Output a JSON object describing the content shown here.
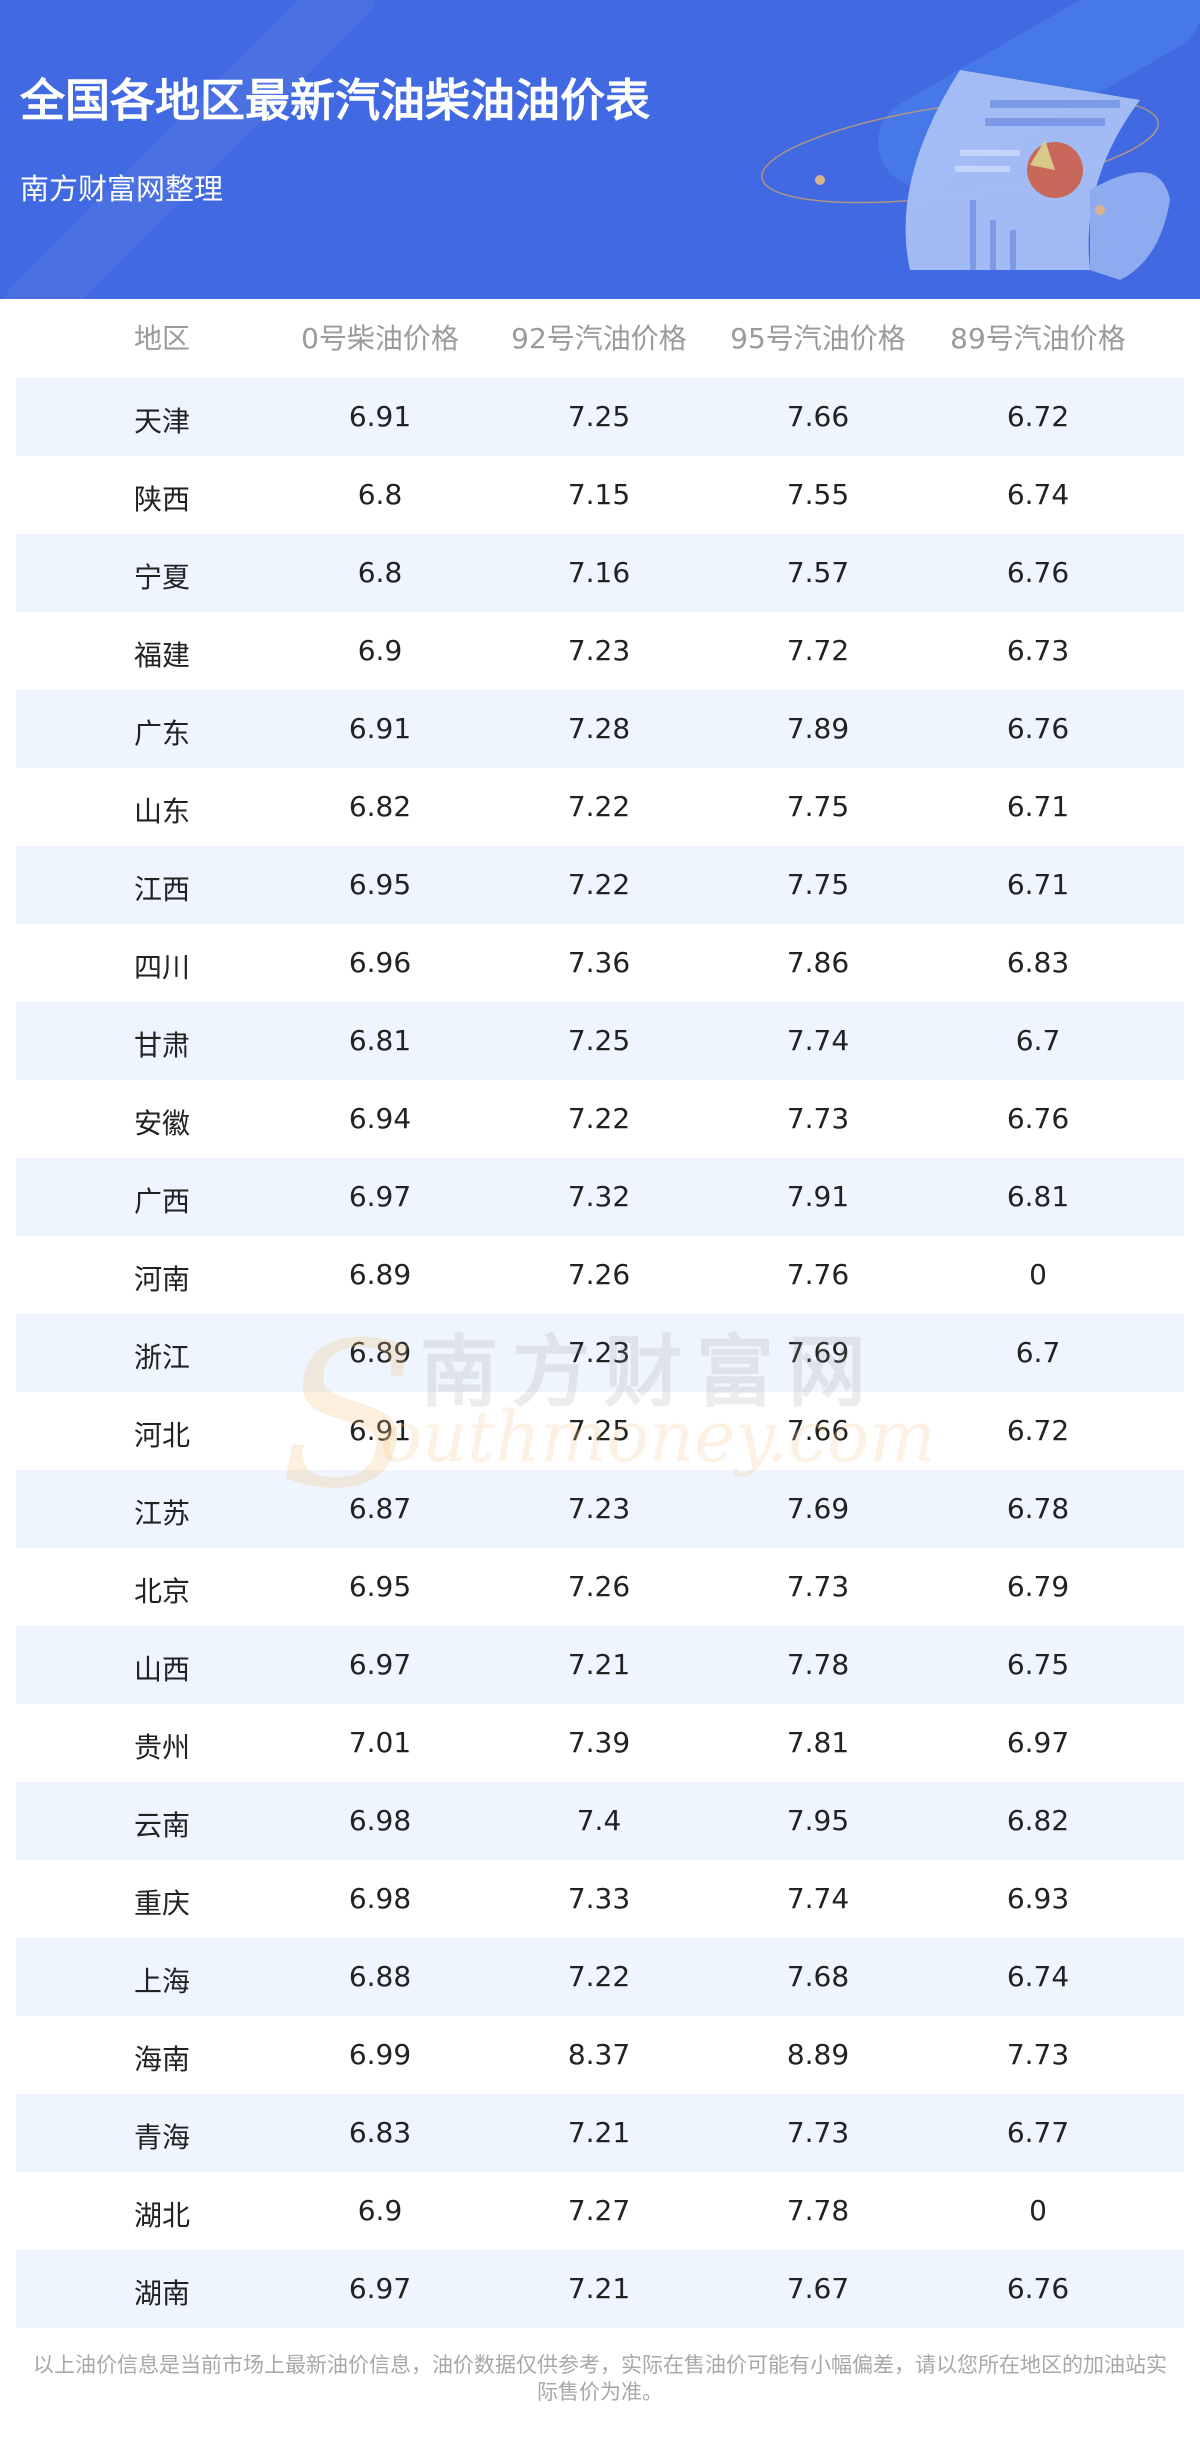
{
  "header": {
    "title": "全国各地区最新汽油柴油油价表",
    "subtitle": "南方财富网整理",
    "background_color": "#4169e1"
  },
  "table": {
    "columns": [
      "地区",
      "0号柴油价格",
      "92号汽油价格",
      "95号汽油价格",
      "89号汽油价格"
    ],
    "rows": [
      [
        "天津",
        "6.91",
        "7.25",
        "7.66",
        "6.72"
      ],
      [
        "陕西",
        "6.8",
        "7.15",
        "7.55",
        "6.74"
      ],
      [
        "宁夏",
        "6.8",
        "7.16",
        "7.57",
        "6.76"
      ],
      [
        "福建",
        "6.9",
        "7.23",
        "7.72",
        "6.73"
      ],
      [
        "广东",
        "6.91",
        "7.28",
        "7.89",
        "6.76"
      ],
      [
        "山东",
        "6.82",
        "7.22",
        "7.75",
        "6.71"
      ],
      [
        "江西",
        "6.95",
        "7.22",
        "7.75",
        "6.71"
      ],
      [
        "四川",
        "6.96",
        "7.36",
        "7.86",
        "6.83"
      ],
      [
        "甘肃",
        "6.81",
        "7.25",
        "7.74",
        "6.7"
      ],
      [
        "安徽",
        "6.94",
        "7.22",
        "7.73",
        "6.76"
      ],
      [
        "广西",
        "6.97",
        "7.32",
        "7.91",
        "6.81"
      ],
      [
        "河南",
        "6.89",
        "7.26",
        "7.76",
        "0"
      ],
      [
        "浙江",
        "6.89",
        "7.23",
        "7.69",
        "6.7"
      ],
      [
        "河北",
        "6.91",
        "7.25",
        "7.66",
        "6.72"
      ],
      [
        "江苏",
        "6.87",
        "7.23",
        "7.69",
        "6.78"
      ],
      [
        "北京",
        "6.95",
        "7.26",
        "7.73",
        "6.79"
      ],
      [
        "山西",
        "6.97",
        "7.21",
        "7.78",
        "6.75"
      ],
      [
        "贵州",
        "7.01",
        "7.39",
        "7.81",
        "6.97"
      ],
      [
        "云南",
        "6.98",
        "7.4",
        "7.95",
        "6.82"
      ],
      [
        "重庆",
        "6.98",
        "7.33",
        "7.74",
        "6.93"
      ],
      [
        "上海",
        "6.88",
        "7.22",
        "7.68",
        "6.74"
      ],
      [
        "海南",
        "6.99",
        "8.37",
        "8.89",
        "7.73"
      ],
      [
        "青海",
        "6.83",
        "7.21",
        "7.73",
        "6.77"
      ],
      [
        "湖北",
        "6.9",
        "7.27",
        "7.78",
        "0"
      ],
      [
        "湖南",
        "6.97",
        "7.21",
        "7.67",
        "6.76"
      ]
    ],
    "stripe_color": "#eef5fe"
  },
  "watermark": {
    "cn": "南方财富网",
    "en": "outhmoney.com",
    "s": "S"
  },
  "footer": {
    "line1": "以上油价信息是当前市场上最新油价信息，油价数据仅供参考，实际在售油价可能有小幅偏差，请以您所在地区的加油站实",
    "line2": "际售价为准。"
  }
}
